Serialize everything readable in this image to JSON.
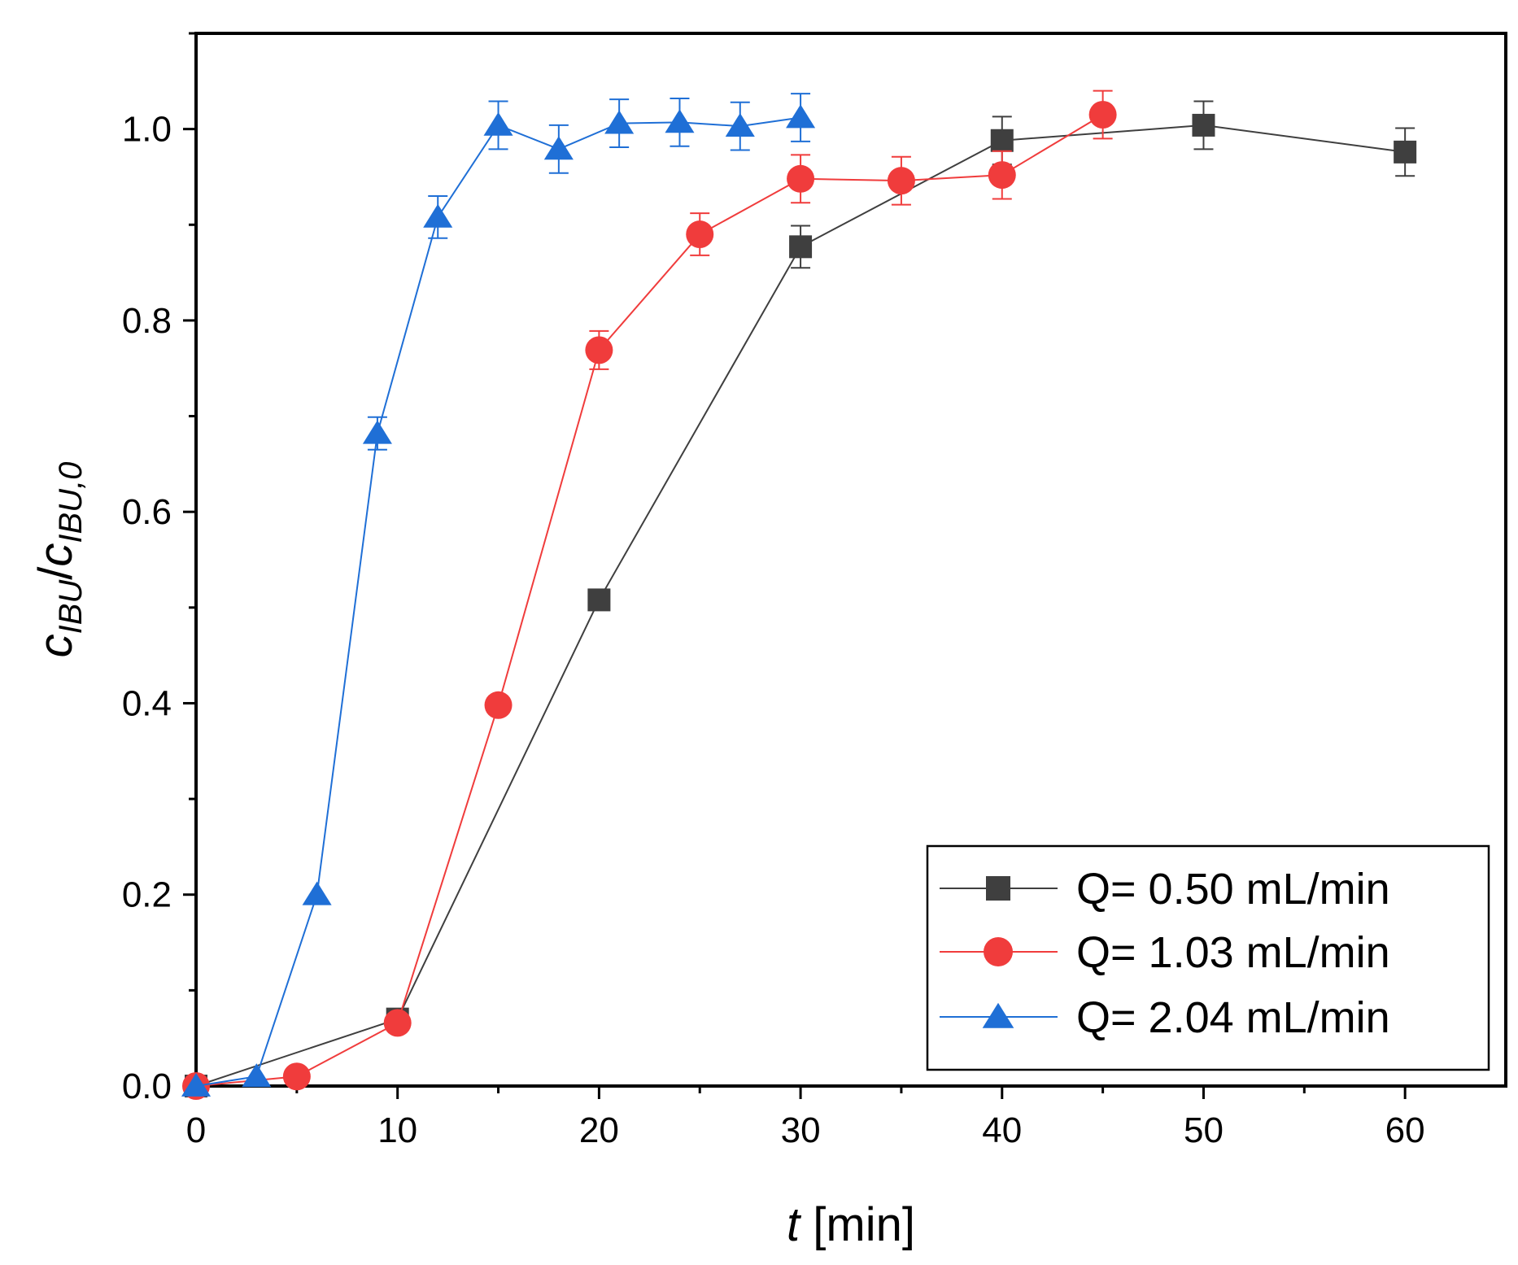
{
  "chart_data": {
    "type": "line",
    "xlabel": {
      "italic": "t",
      "rest": " [min]"
    },
    "ylabel": {
      "c1": "c",
      "s1": "IBU",
      "slash": "/",
      "c2": "c",
      "s2": "IBU,0"
    },
    "xlim": [
      0,
      65
    ],
    "ylim": [
      0,
      1.1
    ],
    "xticks": [
      0,
      10,
      20,
      30,
      40,
      50,
      60
    ],
    "xtick_labels": [
      "0",
      "10",
      "20",
      "30",
      "40",
      "50",
      "60"
    ],
    "yticks": [
      0,
      0.2,
      0.4,
      0.6,
      0.8,
      1.0
    ],
    "ytick_labels": [
      "0.0",
      "0.2",
      "0.4",
      "0.6",
      "0.8",
      "1.0"
    ],
    "grid": false,
    "legend_position": "bottom-right",
    "series": [
      {
        "name": "Q= 0.50 mL/min",
        "color": "#3f3f3f",
        "marker": "square",
        "x": [
          0,
          10,
          20,
          30,
          40,
          50,
          60
        ],
        "y": [
          0.0,
          0.07,
          0.508,
          0.877,
          0.988,
          1.004,
          0.976
        ],
        "err": [
          0,
          0,
          0,
          0.022,
          0.025,
          0.025,
          0.025
        ]
      },
      {
        "name": "Q= 1.03 mL/min",
        "color": "#f03c3c",
        "marker": "circle",
        "x": [
          0,
          5,
          10,
          15,
          20,
          25,
          30,
          35,
          40,
          45
        ],
        "y": [
          0.0,
          0.01,
          0.066,
          0.398,
          0.769,
          0.89,
          0.948,
          0.946,
          0.952,
          1.015
        ],
        "err": [
          0,
          0,
          0,
          0,
          0.02,
          0.022,
          0.025,
          0.025,
          0.025,
          0.025
        ]
      },
      {
        "name": "Q= 2.04 mL/min",
        "color": "#1f6fd6",
        "marker": "triangle",
        "x": [
          0,
          3,
          6,
          9,
          12,
          15,
          18,
          21,
          24,
          27,
          30
        ],
        "y": [
          0.0,
          0.01,
          0.2,
          0.682,
          0.908,
          1.004,
          0.979,
          1.006,
          1.007,
          1.003,
          1.012
        ],
        "err": [
          0,
          0,
          0,
          0.017,
          0.022,
          0.025,
          0.025,
          0.025,
          0.025,
          0.025,
          0.025
        ]
      }
    ]
  }
}
